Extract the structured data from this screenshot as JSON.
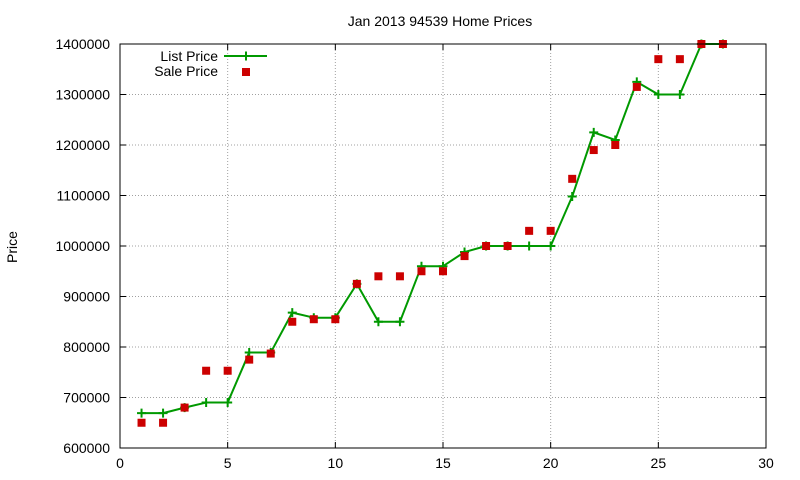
{
  "chart_data": {
    "type": "line",
    "title": "Jan 2013 94539 Home Prices",
    "xlabel": "",
    "ylabel": "Price",
    "xlim": [
      0,
      30
    ],
    "ylim": [
      600000,
      1400000
    ],
    "xticks": [
      "0",
      "5",
      "10",
      "15",
      "20",
      "25",
      "30"
    ],
    "yticks": [
      "600000",
      "700000",
      "800000",
      "900000",
      "1000000",
      "1100000",
      "1200000",
      "1300000",
      "1400000"
    ],
    "grid": true,
    "legend_position": "top-left",
    "series": [
      {
        "name": "List Price",
        "style": "line-cross",
        "color": "#009900",
        "x": [
          1,
          2,
          3,
          4,
          5,
          6,
          7,
          8,
          9,
          10,
          11,
          12,
          13,
          14,
          15,
          16,
          17,
          18,
          19,
          20,
          21,
          22,
          23,
          24,
          25,
          26,
          27,
          28
        ],
        "y": [
          669000,
          669000,
          680000,
          690000,
          690000,
          789000,
          789000,
          868000,
          858000,
          858000,
          925000,
          850000,
          850000,
          960000,
          960000,
          988000,
          1000000,
          1000000,
          1000000,
          1000000,
          1098000,
          1225000,
          1210000,
          1325000,
          1300000,
          1300000,
          1400000,
          1400000
        ]
      },
      {
        "name": "Sale Price",
        "style": "square-points",
        "color": "#cc0000",
        "x": [
          1,
          2,
          3,
          4,
          5,
          6,
          7,
          8,
          9,
          10,
          11,
          12,
          13,
          14,
          15,
          16,
          17,
          18,
          19,
          20,
          21,
          22,
          23,
          24,
          25,
          26,
          27,
          28
        ],
        "y": [
          650000,
          650000,
          680000,
          753000,
          753000,
          775000,
          787000,
          850000,
          855000,
          855000,
          925000,
          940000,
          940000,
          950000,
          950000,
          980000,
          1000000,
          1000000,
          1030000,
          1030000,
          1133000,
          1190000,
          1200000,
          1315000,
          1370000,
          1370000,
          1400000,
          1400000
        ]
      }
    ]
  }
}
